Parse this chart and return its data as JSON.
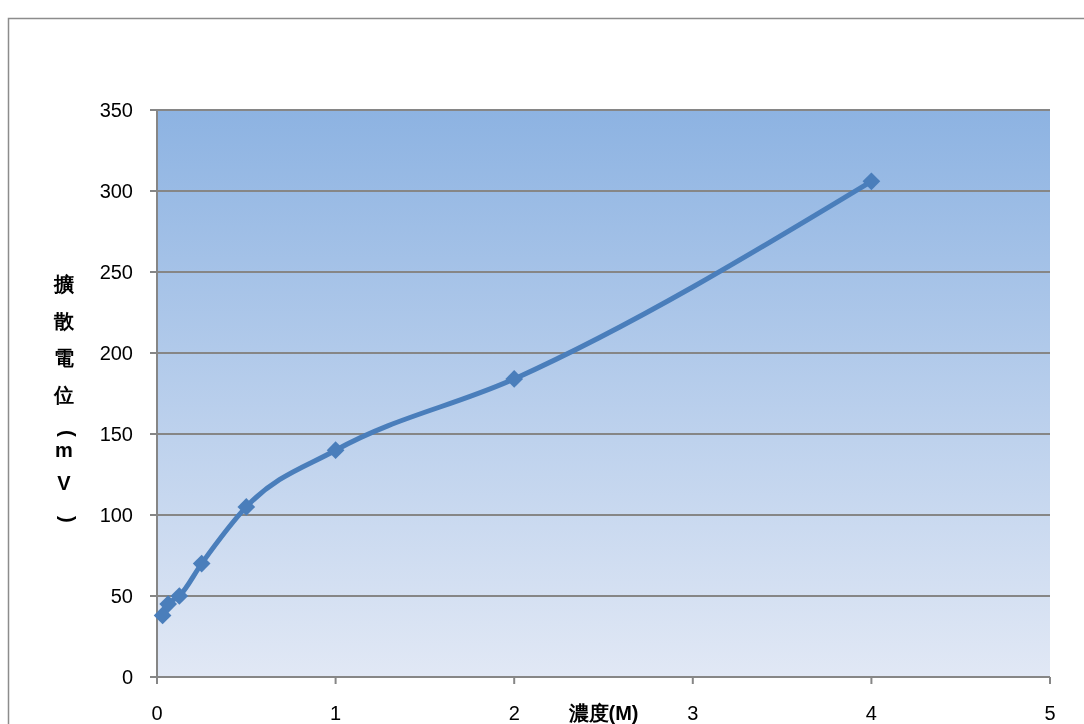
{
  "chart_data": {
    "type": "line",
    "xlabel": "濃度(M)",
    "ylabel": "擴散電位(mV)",
    "x": [
      0.03125,
      0.0625,
      0.125,
      0.25,
      0.5,
      1,
      2,
      4
    ],
    "series": [
      {
        "color": "#4a7ebb",
        "values": [
          38,
          45,
          50,
          70,
          105,
          140,
          184,
          306
        ]
      }
    ],
    "xlim": [
      0,
      5
    ],
    "xticks": [
      0,
      1,
      2,
      3,
      4,
      5
    ],
    "ylim": [
      0,
      350
    ],
    "yticks": [
      0,
      50,
      100,
      150,
      200,
      250,
      300,
      350
    ],
    "grid": "y",
    "marker": "diamond",
    "line_style": "solid"
  }
}
